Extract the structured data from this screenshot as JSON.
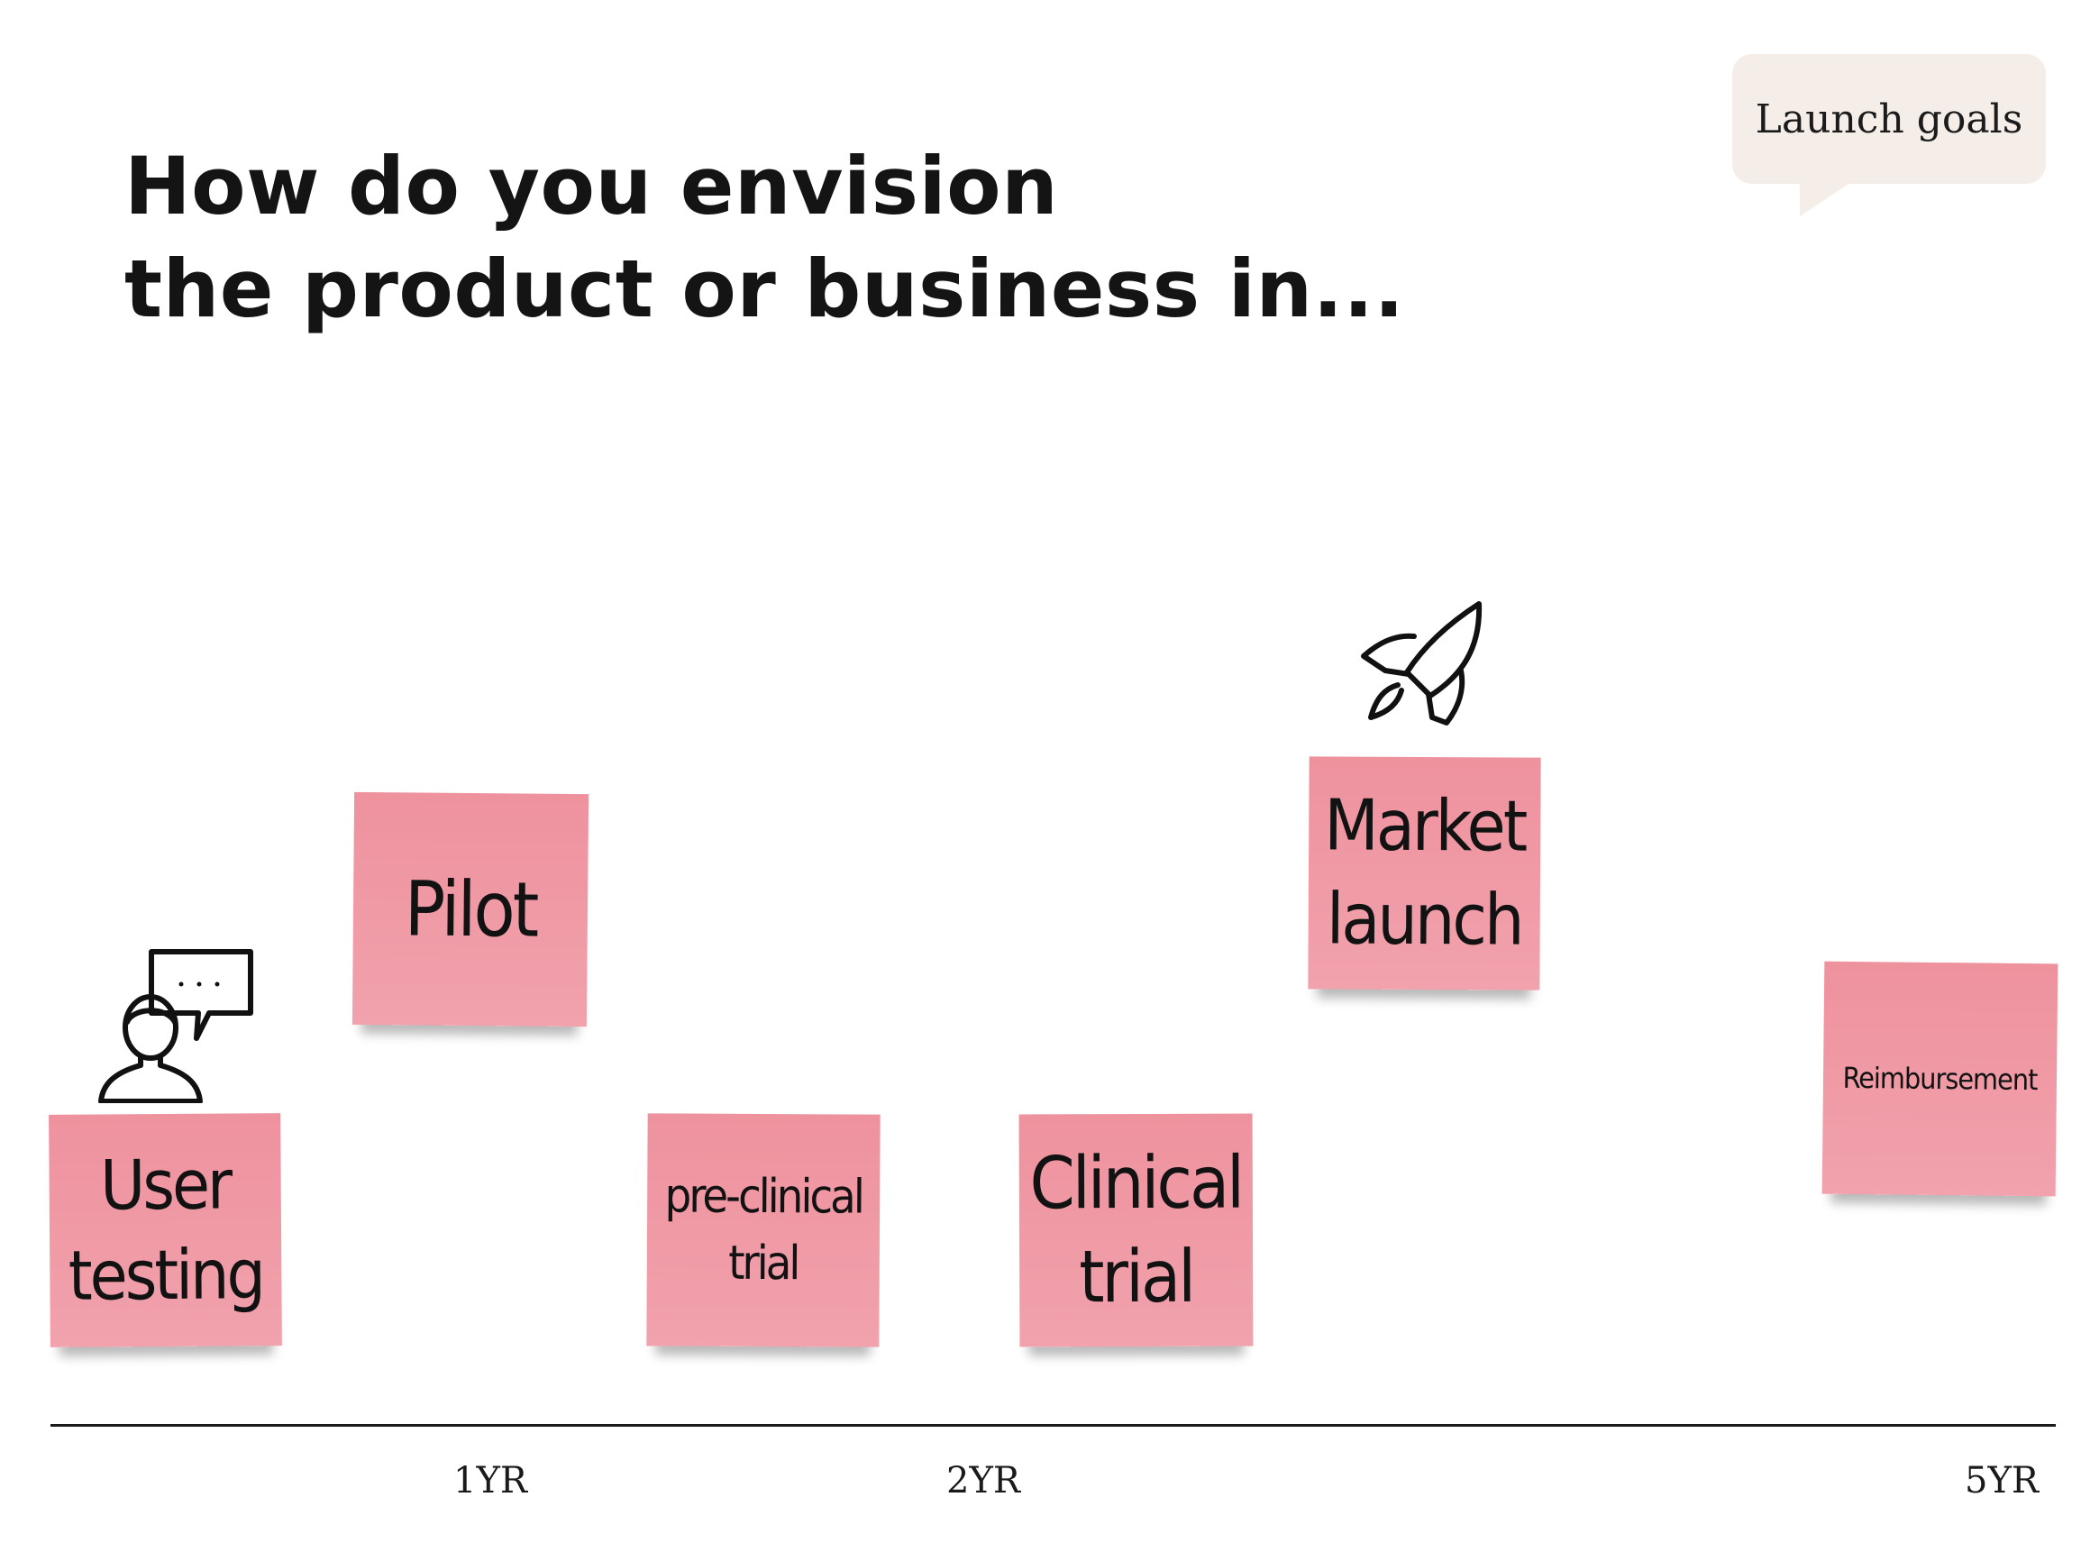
{
  "heading": {
    "line1": "How do you envision",
    "line2": "the product or business in..."
  },
  "speech_bubble": {
    "label": "Launch goals",
    "color": "#f5ede8"
  },
  "sticky_note_color": "#ee929e",
  "sticky_notes": [
    {
      "id": "user-testing",
      "line1": "User",
      "line2": "testing"
    },
    {
      "id": "pilot",
      "line1": "Pilot"
    },
    {
      "id": "pre-clinical-trial",
      "line1": "pre-clinical",
      "line2": "trial"
    },
    {
      "id": "clinical-trial",
      "line1": "Clinical",
      "line2": "trial"
    },
    {
      "id": "market-launch",
      "line1": "Market",
      "line2": "launch"
    },
    {
      "id": "reimbursement",
      "line1": "Reimbursement"
    }
  ],
  "icons": {
    "person": "person-with-speech-bubble-icon",
    "rocket": "rocket-icon"
  },
  "timeline": {
    "ticks": [
      "1YR",
      "2YR",
      "5YR"
    ]
  }
}
